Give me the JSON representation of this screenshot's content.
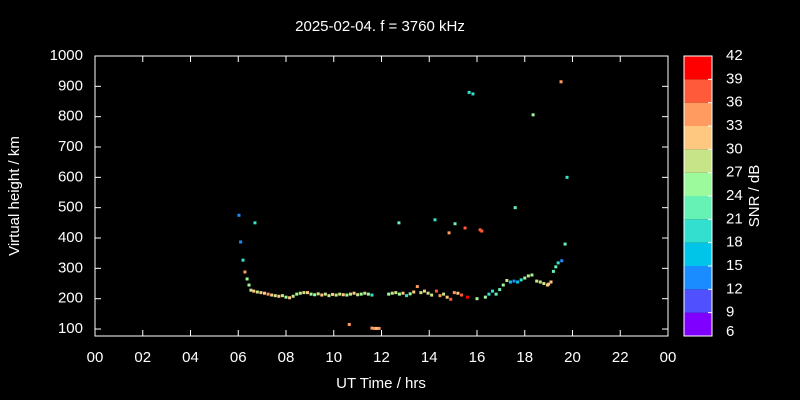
{
  "chart_data": {
    "type": "scatter",
    "title": "2025-02-04. f = 3760 kHz",
    "x_label": "UT Time / hrs",
    "y_label": "Virtual height / km",
    "xlim": [
      0,
      24
    ],
    "xticks": [
      {
        "value": 0,
        "label": "00"
      },
      {
        "value": 2,
        "label": "02"
      },
      {
        "value": 4,
        "label": "04"
      },
      {
        "value": 6,
        "label": "06"
      },
      {
        "value": 8,
        "label": "08"
      },
      10,
      12,
      14,
      16,
      18,
      20,
      22,
      {
        "value": 24,
        "label": "00"
      }
    ],
    "ylim": [
      77,
      1000
    ],
    "yticks": [
      100,
      200,
      300,
      400,
      500,
      600,
      700,
      800,
      900,
      1000
    ],
    "colorbar": {
      "label": "SNR / dB",
      "lim": [
        6,
        42
      ],
      "ticks": [
        6,
        9,
        12,
        15,
        18,
        21,
        24,
        27,
        30,
        33,
        36,
        39,
        42
      ],
      "colors": [
        "#8000ff",
        "#5050ff",
        "#1a8cff",
        "#00c4e8",
        "#33e0d0",
        "#66f2b4",
        "#9cfa9c",
        "#c8e488",
        "#ffc880",
        "#ff9a60",
        "#ff5a3a",
        "#ff0000"
      ]
    },
    "series": [
      {
        "x": [
          6.03,
          6.1,
          6.2,
          6.28,
          6.37,
          6.45,
          6.53,
          6.7,
          6.65,
          6.8,
          6.95,
          7.1,
          7.25,
          7.4,
          7.55,
          7.7,
          7.85,
          8.0,
          8.15,
          8.3,
          8.45,
          8.6,
          8.75,
          8.9,
          9.05,
          9.2,
          9.35,
          9.5,
          9.65,
          9.8,
          9.95,
          10.1,
          10.25,
          10.4,
          10.55,
          10.7,
          10.85,
          11.0,
          11.15,
          11.3,
          11.45,
          11.6,
          10.65,
          11.6,
          11.7,
          11.8,
          11.9,
          12.73,
          12.3,
          12.45,
          12.6,
          12.75,
          12.9,
          13.05,
          13.2,
          13.35,
          13.5,
          13.65,
          13.8,
          13.95,
          14.1,
          14.24,
          14.3,
          14.45,
          14.6,
          14.75,
          14.83,
          14.9,
          15.08,
          15.05,
          15.2,
          15.35,
          15.5,
          15.6,
          15.67,
          15.83,
          16.0,
          16.13,
          16.2,
          16.35,
          16.5,
          16.65,
          16.8,
          16.95,
          17.1,
          17.25,
          17.4,
          17.6,
          17.55,
          17.7,
          17.85,
          18.0,
          18.15,
          18.35,
          18.3,
          18.5,
          18.65,
          18.8,
          18.95,
          19.1,
          19.2,
          19.3,
          19.4,
          19.52,
          19.55,
          19.69,
          19.77,
          19.0
        ],
        "values": [
          475,
          387,
          327,
          288,
          265,
          245,
          228,
          450,
          225,
          222,
          220,
          218,
          215,
          212,
          210,
          208,
          210,
          205,
          203,
          208,
          215,
          218,
          220,
          220,
          215,
          213,
          216,
          212,
          215,
          210,
          214,
          212,
          215,
          213,
          212,
          215,
          218,
          213,
          215,
          218,
          215,
          212,
          115,
          103,
          102,
          102,
          102,
          450,
          215,
          218,
          220,
          215,
          218,
          210,
          216,
          222,
          240,
          220,
          225,
          218,
          212,
          460,
          225,
          210,
          215,
          205,
          417,
          198,
          447,
          220,
          218,
          212,
          433,
          205,
          880,
          875,
          200,
          427,
          423,
          205,
          215,
          225,
          215,
          230,
          245,
          260,
          255,
          500,
          258,
          255,
          262,
          268,
          275,
          806,
          278,
          258,
          255,
          250,
          245,
          255,
          290,
          305,
          318,
          915,
          325,
          380,
          600,
          248
        ],
        "snr": [
          13,
          13,
          19,
          33,
          25,
          26,
          29,
          20,
          30,
          28,
          31,
          30,
          33,
          32,
          29,
          31,
          28,
          26,
          30,
          27,
          25,
          28,
          27,
          30,
          26,
          24,
          28,
          31,
          27,
          29,
          30,
          27,
          29,
          31,
          26,
          28,
          30,
          27,
          25,
          29,
          24,
          20,
          33,
          33,
          35,
          32,
          34,
          21,
          24,
          27,
          29,
          24,
          31,
          20,
          26,
          30,
          35,
          28,
          31,
          27,
          29,
          20,
          38,
          33,
          27,
          30,
          33,
          37,
          21,
          35,
          32,
          36,
          37,
          39,
          19,
          19,
          24,
          38,
          36,
          26,
          20,
          19,
          22,
          21,
          24,
          28,
          16,
          23,
          14,
          17,
          20,
          24,
          27,
          24,
          26,
          28,
          27,
          29,
          31,
          30,
          22,
          23,
          19,
          33,
          13,
          22,
          20,
          32
        ]
      }
    ]
  }
}
